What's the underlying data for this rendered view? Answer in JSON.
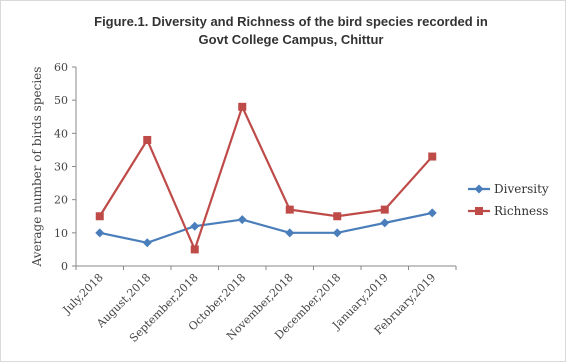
{
  "chart_data": {
    "type": "line",
    "title_line_1": "Figure.1. Diversity and Richness of the bird species  recorded in",
    "title_line_2": "Govt College Campus, Chittur",
    "ylabel": "Average number of birds species",
    "xlabel": "",
    "ylim": [
      0,
      60
    ],
    "yticks": [
      0,
      10,
      20,
      30,
      40,
      50,
      60
    ],
    "categories": [
      "July,2018",
      "August,2018",
      "September,2018",
      "October,2018",
      "November,2018",
      "December,2018",
      "January,2019",
      "February,2019"
    ],
    "legend_position": "right",
    "grid": false,
    "series": [
      {
        "name": "Diversity",
        "color": "#4a7ebb",
        "marker": "diamond",
        "values": [
          10,
          7,
          12,
          14,
          10,
          10,
          13,
          16
        ]
      },
      {
        "name": "Richness",
        "color": "#be4b48",
        "marker": "square",
        "values": [
          15,
          38,
          5,
          48,
          17,
          15,
          17,
          33
        ]
      }
    ]
  }
}
